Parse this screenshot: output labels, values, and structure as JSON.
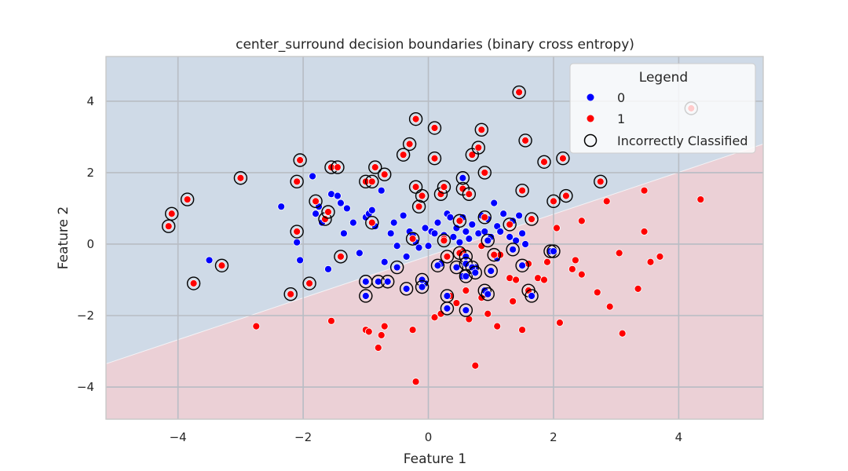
{
  "chart_data": {
    "type": "scatter",
    "title": "center_surround decision boundaries (binary cross entropy)",
    "xlabel": "Feature 1",
    "ylabel": "Feature 2",
    "xlim": [
      -5.15,
      5.35
    ],
    "ylim": [
      -4.9,
      5.25
    ],
    "x_ticks": [
      -4,
      -2,
      0,
      2,
      4
    ],
    "y_ticks": [
      -4,
      -2,
      0,
      2,
      4
    ],
    "grid": true,
    "legend": {
      "title": "Legend",
      "placement": "top-right",
      "entries": [
        {
          "label": "0",
          "marker": "filled-circle",
          "color": "#0000ff"
        },
        {
          "label": "1",
          "marker": "filled-circle",
          "color": "#ff0000"
        },
        {
          "label": "Incorrectly Classified",
          "marker": "open-circle",
          "color": "#000000"
        }
      ]
    },
    "decision_boundary": {
      "description_line": [
        [
          -5.15,
          -3.35
        ],
        [
          5.35,
          2.8
        ]
      ],
      "region_above_class": "0",
      "region_below_class": "1",
      "region_above_color": "#cfdae7",
      "region_below_color": "#ebd0d6"
    },
    "series": [
      {
        "name": "0",
        "color": "#0000ff",
        "points": [
          [
            -3.5,
            -0.45
          ],
          [
            -2.35,
            1.05
          ],
          [
            -2.1,
            0.05
          ],
          [
            -2.05,
            -0.45
          ],
          [
            -1.85,
            1.9
          ],
          [
            -1.8,
            0.85
          ],
          [
            -1.75,
            1.05
          ],
          [
            -1.7,
            0.6
          ],
          [
            -1.6,
            -0.7
          ],
          [
            -1.55,
            1.4
          ],
          [
            -1.45,
            1.35
          ],
          [
            -1.4,
            1.15
          ],
          [
            -1.35,
            0.3
          ],
          [
            -1.3,
            1.0
          ],
          [
            -1.1,
            -0.25
          ],
          [
            -1.0,
            0.75
          ],
          [
            -0.95,
            0.85
          ],
          [
            -0.9,
            0.95
          ],
          [
            -0.85,
            0.5
          ],
          [
            -0.75,
            1.5
          ],
          [
            -0.6,
            0.3
          ],
          [
            -0.55,
            0.6
          ],
          [
            -0.5,
            -0.05
          ],
          [
            -0.4,
            0.8
          ],
          [
            -0.35,
            -0.35
          ],
          [
            -0.3,
            0.35
          ],
          [
            -0.25,
            0.25
          ],
          [
            -0.2,
            0.05
          ],
          [
            -0.15,
            -0.1
          ],
          [
            -0.05,
            0.45
          ],
          [
            0.0,
            -0.05
          ],
          [
            0.05,
            0.35
          ],
          [
            0.1,
            0.3
          ],
          [
            0.15,
            0.6
          ],
          [
            0.2,
            -0.55
          ],
          [
            0.25,
            0.25
          ],
          [
            0.3,
            0.85
          ],
          [
            0.35,
            0.75
          ],
          [
            0.4,
            0.2
          ],
          [
            0.45,
            0.45
          ],
          [
            0.5,
            0.05
          ],
          [
            0.55,
            0.75
          ],
          [
            0.6,
            0.35
          ],
          [
            0.65,
            0.15
          ],
          [
            0.7,
            0.55
          ],
          [
            0.8,
            0.3
          ],
          [
            0.85,
            0.8
          ],
          [
            0.9,
            0.35
          ],
          [
            0.95,
            0.7
          ],
          [
            1.0,
            0.2
          ],
          [
            1.05,
            1.15
          ],
          [
            1.1,
            0.5
          ],
          [
            1.15,
            0.35
          ],
          [
            1.2,
            0.85
          ],
          [
            1.3,
            0.2
          ],
          [
            1.35,
            0.65
          ],
          [
            1.4,
            0.1
          ],
          [
            1.45,
            0.8
          ],
          [
            1.5,
            0.3
          ],
          [
            1.55,
            0.0
          ],
          [
            -1.2,
            0.6
          ],
          [
            -0.7,
            -0.5
          ],
          [
            -0.05,
            -1.1
          ],
          [
            0.55,
            -0.9
          ],
          [
            0.75,
            -0.65
          ],
          [
            1.1,
            -0.4
          ]
        ]
      },
      {
        "name": "1",
        "color": "#ff0000",
        "points": [
          [
            -2.75,
            -2.3
          ],
          [
            -1.55,
            -2.15
          ],
          [
            -1.0,
            -2.4
          ],
          [
            -0.95,
            -2.45
          ],
          [
            -0.8,
            -2.9
          ],
          [
            -0.75,
            -2.55
          ],
          [
            -0.7,
            -2.3
          ],
          [
            -0.25,
            -2.4
          ],
          [
            -0.2,
            -3.85
          ],
          [
            0.1,
            -2.05
          ],
          [
            0.2,
            -1.95
          ],
          [
            0.35,
            -1.45
          ],
          [
            0.45,
            -1.65
          ],
          [
            0.6,
            -1.3
          ],
          [
            0.65,
            -2.1
          ],
          [
            0.75,
            -3.4
          ],
          [
            0.85,
            -1.5
          ],
          [
            0.95,
            -1.95
          ],
          [
            1.1,
            -2.3
          ],
          [
            1.3,
            -0.95
          ],
          [
            1.35,
            -1.6
          ],
          [
            1.5,
            -2.4
          ],
          [
            1.6,
            -0.55
          ],
          [
            1.75,
            -0.95
          ],
          [
            1.85,
            -1.0
          ],
          [
            1.9,
            -0.5
          ],
          [
            2.05,
            0.45
          ],
          [
            2.1,
            -2.2
          ],
          [
            2.3,
            -0.7
          ],
          [
            2.35,
            -0.45
          ],
          [
            2.45,
            -0.85
          ],
          [
            2.45,
            0.65
          ],
          [
            2.7,
            -1.35
          ],
          [
            2.85,
            1.2
          ],
          [
            2.9,
            -1.75
          ],
          [
            3.05,
            -0.25
          ],
          [
            3.1,
            -2.5
          ],
          [
            3.35,
            -1.25
          ],
          [
            3.45,
            0.35
          ],
          [
            3.45,
            1.5
          ],
          [
            3.55,
            -0.5
          ],
          [
            3.7,
            -0.35
          ],
          [
            4.35,
            1.25
          ],
          [
            0.25,
            0.15
          ],
          [
            0.55,
            -0.2
          ],
          [
            0.85,
            -0.05
          ],
          [
            1.15,
            -0.3
          ],
          [
            1.4,
            -1.0
          ]
        ]
      }
    ],
    "misclassified": [
      {
        "x": -4.15,
        "y": 0.5,
        "class": "1"
      },
      {
        "x": -4.1,
        "y": 0.85,
        "class": "1"
      },
      {
        "x": -3.85,
        "y": 1.25,
        "class": "1"
      },
      {
        "x": -3.75,
        "y": -1.1,
        "class": "1"
      },
      {
        "x": -3.3,
        "y": -0.6,
        "class": "1"
      },
      {
        "x": -3.0,
        "y": 1.85,
        "class": "1"
      },
      {
        "x": -2.2,
        "y": -1.4,
        "class": "1"
      },
      {
        "x": -2.1,
        "y": 0.35,
        "class": "1"
      },
      {
        "x": -2.1,
        "y": 1.75,
        "class": "1"
      },
      {
        "x": -2.05,
        "y": 2.35,
        "class": "1"
      },
      {
        "x": -1.9,
        "y": -1.1,
        "class": "1"
      },
      {
        "x": -1.8,
        "y": 1.2,
        "class": "1"
      },
      {
        "x": -1.65,
        "y": 0.7,
        "class": "1"
      },
      {
        "x": -1.6,
        "y": 0.9,
        "class": "1"
      },
      {
        "x": -1.55,
        "y": 2.15,
        "class": "1"
      },
      {
        "x": -1.45,
        "y": 2.15,
        "class": "1"
      },
      {
        "x": -1.4,
        "y": -0.35,
        "class": "1"
      },
      {
        "x": -1.0,
        "y": 1.75,
        "class": "1"
      },
      {
        "x": -1.0,
        "y": -1.05,
        "class": "0"
      },
      {
        "x": -1.0,
        "y": -1.45,
        "class": "0"
      },
      {
        "x": -0.9,
        "y": 1.75,
        "class": "1"
      },
      {
        "x": -0.9,
        "y": 0.6,
        "class": "1"
      },
      {
        "x": -0.85,
        "y": 2.15,
        "class": "1"
      },
      {
        "x": -0.8,
        "y": -1.05,
        "class": "0"
      },
      {
        "x": -0.7,
        "y": 1.95,
        "class": "1"
      },
      {
        "x": -0.65,
        "y": -1.05,
        "class": "0"
      },
      {
        "x": -0.5,
        "y": -0.65,
        "class": "0"
      },
      {
        "x": -0.4,
        "y": 2.5,
        "class": "1"
      },
      {
        "x": -0.35,
        "y": -1.25,
        "class": "0"
      },
      {
        "x": -0.3,
        "y": 2.8,
        "class": "1"
      },
      {
        "x": -0.25,
        "y": 0.15,
        "class": "1"
      },
      {
        "x": -0.2,
        "y": 3.5,
        "class": "1"
      },
      {
        "x": -0.2,
        "y": 1.6,
        "class": "1"
      },
      {
        "x": -0.15,
        "y": 1.05,
        "class": "1"
      },
      {
        "x": -0.1,
        "y": 1.35,
        "class": "1"
      },
      {
        "x": -0.1,
        "y": -1.0,
        "class": "0"
      },
      {
        "x": -0.1,
        "y": -1.2,
        "class": "0"
      },
      {
        "x": 0.1,
        "y": 3.25,
        "class": "1"
      },
      {
        "x": 0.1,
        "y": 2.4,
        "class": "1"
      },
      {
        "x": 0.15,
        "y": -0.6,
        "class": "0"
      },
      {
        "x": 0.2,
        "y": 1.4,
        "class": "1"
      },
      {
        "x": 0.25,
        "y": 1.6,
        "class": "1"
      },
      {
        "x": 0.25,
        "y": 0.1,
        "class": "1"
      },
      {
        "x": 0.3,
        "y": -0.35,
        "class": "1"
      },
      {
        "x": 0.3,
        "y": -1.45,
        "class": "0"
      },
      {
        "x": 0.3,
        "y": -1.8,
        "class": "0"
      },
      {
        "x": 0.45,
        "y": -0.65,
        "class": "0"
      },
      {
        "x": 0.5,
        "y": 0.65,
        "class": "1"
      },
      {
        "x": 0.5,
        "y": -0.25,
        "class": "1"
      },
      {
        "x": 0.55,
        "y": 1.55,
        "class": "1"
      },
      {
        "x": 0.55,
        "y": 1.85,
        "class": "0"
      },
      {
        "x": 0.6,
        "y": -0.35,
        "class": "0"
      },
      {
        "x": 0.6,
        "y": -0.55,
        "class": "0"
      },
      {
        "x": 0.6,
        "y": -0.9,
        "class": "0"
      },
      {
        "x": 0.6,
        "y": -1.85,
        "class": "0"
      },
      {
        "x": 0.65,
        "y": 1.4,
        "class": "1"
      },
      {
        "x": 0.7,
        "y": -0.65,
        "class": "0"
      },
      {
        "x": 0.7,
        "y": 2.5,
        "class": "1"
      },
      {
        "x": 0.75,
        "y": -0.8,
        "class": "0"
      },
      {
        "x": 0.8,
        "y": 2.7,
        "class": "1"
      },
      {
        "x": 0.85,
        "y": 3.2,
        "class": "1"
      },
      {
        "x": 0.9,
        "y": 2.0,
        "class": "1"
      },
      {
        "x": 0.9,
        "y": 0.75,
        "class": "1"
      },
      {
        "x": 0.9,
        "y": -1.3,
        "class": "0"
      },
      {
        "x": 0.95,
        "y": 0.1,
        "class": "0"
      },
      {
        "x": 0.95,
        "y": -1.4,
        "class": "0"
      },
      {
        "x": 1.0,
        "y": -0.75,
        "class": "0"
      },
      {
        "x": 1.05,
        "y": -0.3,
        "class": "1"
      },
      {
        "x": 1.3,
        "y": 0.55,
        "class": "1"
      },
      {
        "x": 1.35,
        "y": -0.15,
        "class": "0"
      },
      {
        "x": 1.45,
        "y": 4.25,
        "class": "1"
      },
      {
        "x": 1.5,
        "y": 1.5,
        "class": "1"
      },
      {
        "x": 1.5,
        "y": -0.6,
        "class": "0"
      },
      {
        "x": 1.55,
        "y": 2.9,
        "class": "1"
      },
      {
        "x": 1.6,
        "y": -1.3,
        "class": "1"
      },
      {
        "x": 1.65,
        "y": -1.45,
        "class": "0"
      },
      {
        "x": 1.65,
        "y": 0.7,
        "class": "1"
      },
      {
        "x": 1.85,
        "y": 2.3,
        "class": "1"
      },
      {
        "x": 1.95,
        "y": -0.2,
        "class": "0"
      },
      {
        "x": 2.0,
        "y": -0.2,
        "class": "0"
      },
      {
        "x": 2.0,
        "y": 1.2,
        "class": "1"
      },
      {
        "x": 2.15,
        "y": 2.4,
        "class": "1"
      },
      {
        "x": 2.2,
        "y": 1.35,
        "class": "1"
      },
      {
        "x": 2.75,
        "y": 1.75,
        "class": "1"
      },
      {
        "x": 4.2,
        "y": 3.8,
        "class": "1"
      }
    ]
  }
}
